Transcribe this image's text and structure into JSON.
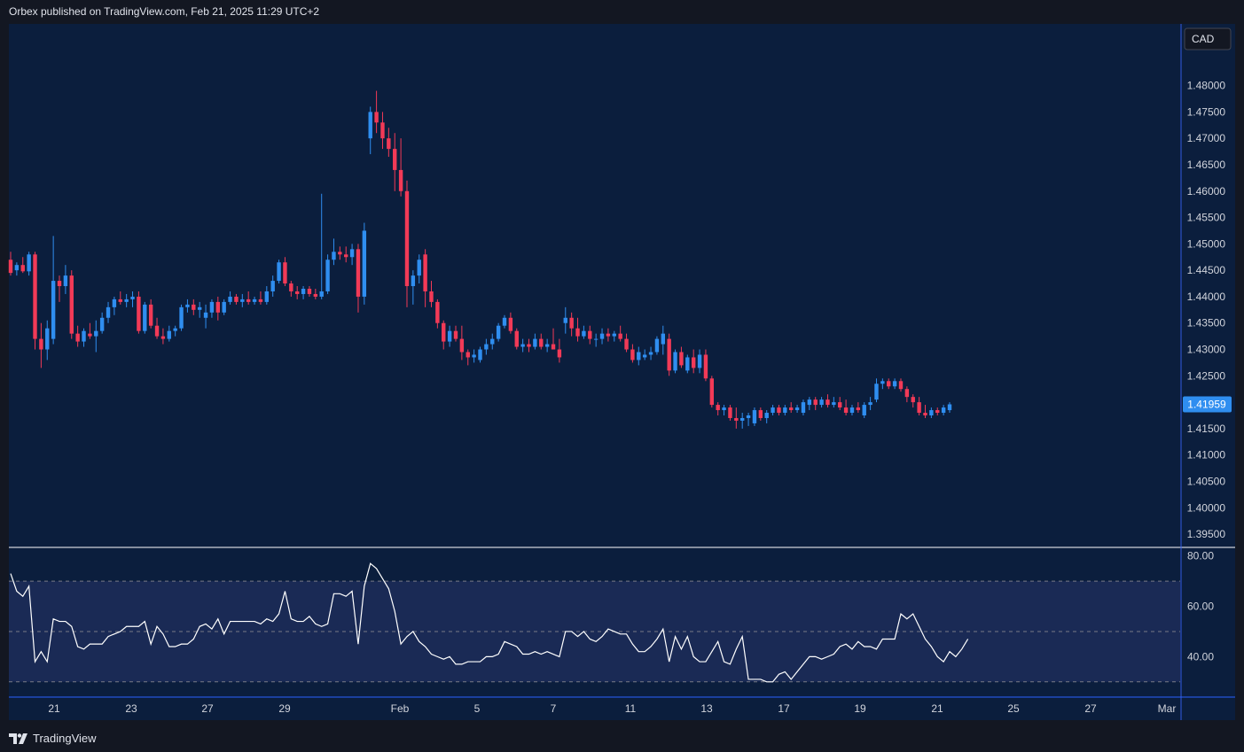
{
  "header": {
    "publisher": "Orbex published on TradingView.com, Feb 21, 2025 11:29 UTC+2"
  },
  "footer": {
    "brand": "TradingView"
  },
  "colors": {
    "background": "#0b1e3d",
    "outer": "#131722",
    "up": "#2f8ef0",
    "down": "#f23a57",
    "rsi_line": "#ffffff",
    "rsi_band": "#1a2a55",
    "axis_text": "#d1d4dc"
  },
  "chart_data": [
    {
      "type": "candlestick",
      "currency_label": "CAD",
      "last_price_label": "1.41959",
      "ylim": [
        1.3935,
        1.4895
      ],
      "y_ticks": [
        "1.48000",
        "1.47500",
        "1.47000",
        "1.46500",
        "1.46000",
        "1.45500",
        "1.45000",
        "1.44500",
        "1.44000",
        "1.43500",
        "1.43000",
        "1.42500",
        "1.42000",
        "1.41500",
        "1.41000",
        "1.40500",
        "1.40000",
        "1.39500"
      ],
      "x_ticks": [
        "21",
        "23",
        "27",
        "29",
        "Feb",
        "5",
        "7",
        "11",
        "13",
        "17",
        "19",
        "21",
        "25",
        "27",
        "Mar"
      ],
      "candles": [
        [
          1.447,
          1.4485,
          1.444,
          1.4445
        ],
        [
          1.445,
          1.4465,
          1.444,
          1.446
        ],
        [
          1.446,
          1.4475,
          1.4445,
          1.4448
        ],
        [
          1.4448,
          1.4485,
          1.444,
          1.448
        ],
        [
          1.448,
          1.4485,
          1.43,
          1.432
        ],
        [
          1.432,
          1.435,
          1.4265,
          1.43
        ],
        [
          1.43,
          1.4355,
          1.428,
          1.434
        ],
        [
          1.432,
          1.4515,
          1.431,
          1.443
        ],
        [
          1.443,
          1.444,
          1.439,
          1.442
        ],
        [
          1.442,
          1.446,
          1.4405,
          1.444
        ],
        [
          1.444,
          1.445,
          1.432,
          1.433
        ],
        [
          1.433,
          1.4345,
          1.4305,
          1.4315
        ],
        [
          1.4315,
          1.434,
          1.4305,
          1.4335
        ],
        [
          1.433,
          1.435,
          1.432,
          1.4325
        ],
        [
          1.4325,
          1.4355,
          1.4295,
          1.4335
        ],
        [
          1.4335,
          1.437,
          1.433,
          1.436
        ],
        [
          1.436,
          1.439,
          1.435,
          1.438
        ],
        [
          1.438,
          1.44,
          1.4365,
          1.4395
        ],
        [
          1.4395,
          1.441,
          1.4385,
          1.439
        ],
        [
          1.439,
          1.4405,
          1.438,
          1.4395
        ],
        [
          1.4395,
          1.441,
          1.438,
          1.44
        ],
        [
          1.44,
          1.441,
          1.433,
          1.4335
        ],
        [
          1.4335,
          1.439,
          1.433,
          1.4385
        ],
        [
          1.4385,
          1.4395,
          1.434,
          1.4345
        ],
        [
          1.4345,
          1.436,
          1.432,
          1.4325
        ],
        [
          1.4325,
          1.434,
          1.431,
          1.432
        ],
        [
          1.432,
          1.4345,
          1.4315,
          1.4335
        ],
        [
          1.4335,
          1.4345,
          1.4325,
          1.434
        ],
        [
          1.434,
          1.4385,
          1.4335,
          1.438
        ],
        [
          1.438,
          1.4395,
          1.437,
          1.4385
        ],
        [
          1.4385,
          1.4395,
          1.4365,
          1.4375
        ],
        [
          1.4375,
          1.439,
          1.436,
          1.438
        ],
        [
          1.436,
          1.4385,
          1.434,
          1.437
        ],
        [
          1.437,
          1.4395,
          1.436,
          1.439
        ],
        [
          1.439,
          1.44,
          1.4355,
          1.437
        ],
        [
          1.437,
          1.4395,
          1.4365,
          1.439
        ],
        [
          1.439,
          1.441,
          1.4385,
          1.44
        ],
        [
          1.44,
          1.4405,
          1.4385,
          1.439
        ],
        [
          1.439,
          1.4405,
          1.438,
          1.4395
        ],
        [
          1.4395,
          1.441,
          1.4385,
          1.439
        ],
        [
          1.439,
          1.44,
          1.4385,
          1.4395
        ],
        [
          1.4395,
          1.441,
          1.4385,
          1.439
        ],
        [
          1.439,
          1.442,
          1.4385,
          1.441
        ],
        [
          1.441,
          1.444,
          1.44,
          1.443
        ],
        [
          1.443,
          1.447,
          1.4425,
          1.4465
        ],
        [
          1.4465,
          1.4475,
          1.442,
          1.4425
        ],
        [
          1.4425,
          1.443,
          1.44,
          1.441
        ],
        [
          1.441,
          1.442,
          1.4395,
          1.4405
        ],
        [
          1.4405,
          1.442,
          1.4395,
          1.4415
        ],
        [
          1.4415,
          1.442,
          1.44,
          1.4405
        ],
        [
          1.4405,
          1.4415,
          1.4395,
          1.44
        ],
        [
          1.44,
          1.4595,
          1.4395,
          1.441
        ],
        [
          1.441,
          1.448,
          1.4405,
          1.447
        ],
        [
          1.447,
          1.451,
          1.446,
          1.4485
        ],
        [
          1.4485,
          1.4495,
          1.447,
          1.448
        ],
        [
          1.448,
          1.4495,
          1.4465,
          1.4475
        ],
        [
          1.4475,
          1.45,
          1.446,
          1.449
        ],
        [
          1.449,
          1.45,
          1.437,
          1.44
        ],
        [
          1.44,
          1.454,
          1.4385,
          1.4525
        ],
        [
          1.47,
          1.476,
          1.467,
          1.475
        ],
        [
          1.475,
          1.479,
          1.471,
          1.473
        ],
        [
          1.473,
          1.475,
          1.468,
          1.47
        ],
        [
          1.47,
          1.472,
          1.4665,
          1.468
        ],
        [
          1.468,
          1.471,
          1.46,
          1.464
        ],
        [
          1.464,
          1.47,
          1.459,
          1.46
        ],
        [
          1.46,
          1.462,
          1.438,
          1.442
        ],
        [
          1.442,
          1.445,
          1.4385,
          1.444
        ],
        [
          1.444,
          1.448,
          1.4425,
          1.447
        ],
        [
          1.448,
          1.449,
          1.438,
          1.441
        ],
        [
          1.441,
          1.443,
          1.438,
          1.439
        ],
        [
          1.439,
          1.4395,
          1.434,
          1.435
        ],
        [
          1.435,
          1.4355,
          1.43,
          1.4315
        ],
        [
          1.4315,
          1.4345,
          1.4305,
          1.4335
        ],
        [
          1.4335,
          1.4345,
          1.4315,
          1.432
        ],
        [
          1.432,
          1.4345,
          1.428,
          1.4295
        ],
        [
          1.4295,
          1.43,
          1.427,
          1.4285
        ],
        [
          1.4285,
          1.43,
          1.4275,
          1.429
        ],
        [
          1.428,
          1.4305,
          1.4275,
          1.43
        ],
        [
          1.43,
          1.432,
          1.429,
          1.431
        ],
        [
          1.431,
          1.433,
          1.43,
          1.432
        ],
        [
          1.432,
          1.435,
          1.4315,
          1.4345
        ],
        [
          1.4345,
          1.4365,
          1.434,
          1.436
        ],
        [
          1.436,
          1.437,
          1.433,
          1.4335
        ],
        [
          1.4335,
          1.434,
          1.43,
          1.4305
        ],
        [
          1.4305,
          1.432,
          1.4295,
          1.431
        ],
        [
          1.431,
          1.432,
          1.4295,
          1.4305
        ],
        [
          1.4305,
          1.433,
          1.43,
          1.432
        ],
        [
          1.432,
          1.433,
          1.43,
          1.4305
        ],
        [
          1.4305,
          1.432,
          1.4295,
          1.431
        ],
        [
          1.431,
          1.434,
          1.43,
          1.43
        ],
        [
          1.43,
          1.432,
          1.4275,
          1.4285
        ],
        [
          1.435,
          1.438,
          1.433,
          1.436
        ],
        [
          1.436,
          1.437,
          1.4325,
          1.434
        ],
        [
          1.434,
          1.436,
          1.4315,
          1.4325
        ],
        [
          1.4325,
          1.4345,
          1.432,
          1.4335
        ],
        [
          1.4335,
          1.4345,
          1.431,
          1.432
        ],
        [
          1.432,
          1.433,
          1.4305,
          1.432
        ],
        [
          1.432,
          1.434,
          1.431,
          1.433
        ],
        [
          1.433,
          1.434,
          1.4315,
          1.4325
        ],
        [
          1.4325,
          1.4335,
          1.4315,
          1.433
        ],
        [
          1.433,
          1.4345,
          1.4315,
          1.432
        ],
        [
          1.432,
          1.433,
          1.4295,
          1.43
        ],
        [
          1.43,
          1.431,
          1.4275,
          1.428
        ],
        [
          1.428,
          1.4305,
          1.427,
          1.4295
        ],
        [
          1.4285,
          1.43,
          1.428,
          1.429
        ],
        [
          1.429,
          1.4305,
          1.428,
          1.4295
        ],
        [
          1.4295,
          1.4325,
          1.429,
          1.432
        ],
        [
          1.431,
          1.4345,
          1.429,
          1.433
        ],
        [
          1.432,
          1.433,
          1.425,
          1.426
        ],
        [
          1.426,
          1.43,
          1.4255,
          1.4295
        ],
        [
          1.4295,
          1.4305,
          1.4265,
          1.427
        ],
        [
          1.426,
          1.429,
          1.4255,
          1.4285
        ],
        [
          1.4285,
          1.43,
          1.4255,
          1.4265
        ],
        [
          1.4265,
          1.43,
          1.4255,
          1.429
        ],
        [
          1.429,
          1.43,
          1.424,
          1.4245
        ],
        [
          1.4245,
          1.425,
          1.419,
          1.4195
        ],
        [
          1.4195,
          1.42,
          1.4175,
          1.4185
        ],
        [
          1.4185,
          1.4195,
          1.4175,
          1.419
        ],
        [
          1.419,
          1.4195,
          1.4165,
          1.417
        ],
        [
          1.417,
          1.419,
          1.415,
          1.4165
        ],
        [
          1.4165,
          1.418,
          1.415,
          1.417
        ],
        [
          1.417,
          1.418,
          1.4155,
          1.4175
        ],
        [
          1.416,
          1.419,
          1.4155,
          1.4185
        ],
        [
          1.4185,
          1.419,
          1.4165,
          1.417
        ],
        [
          1.417,
          1.4185,
          1.416,
          1.418
        ],
        [
          1.418,
          1.4195,
          1.4175,
          1.419
        ],
        [
          1.419,
          1.4195,
          1.4175,
          1.418
        ],
        [
          1.418,
          1.4195,
          1.4175,
          1.419
        ],
        [
          1.419,
          1.42,
          1.418,
          1.4185
        ],
        [
          1.4185,
          1.4195,
          1.418,
          1.419
        ],
        [
          1.418,
          1.4205,
          1.4175,
          1.42
        ],
        [
          1.4195,
          1.421,
          1.4185,
          1.4205
        ],
        [
          1.4205,
          1.421,
          1.4185,
          1.4195
        ],
        [
          1.4195,
          1.421,
          1.419,
          1.4205
        ],
        [
          1.4205,
          1.4215,
          1.419,
          1.4195
        ],
        [
          1.4195,
          1.421,
          1.419,
          1.42
        ],
        [
          1.42,
          1.421,
          1.4185,
          1.419
        ],
        [
          1.419,
          1.4205,
          1.4175,
          1.418
        ],
        [
          1.418,
          1.4195,
          1.4175,
          1.419
        ],
        [
          1.419,
          1.42,
          1.418,
          1.4185
        ],
        [
          1.4175,
          1.42,
          1.417,
          1.4195
        ],
        [
          1.4195,
          1.421,
          1.4185,
          1.42
        ],
        [
          1.4205,
          1.4245,
          1.42,
          1.4235
        ],
        [
          1.4235,
          1.4245,
          1.4225,
          1.424
        ],
        [
          1.424,
          1.4245,
          1.4225,
          1.423
        ],
        [
          1.423,
          1.4245,
          1.4225,
          1.424
        ],
        [
          1.424,
          1.4245,
          1.422,
          1.4225
        ],
        [
          1.4225,
          1.423,
          1.42,
          1.421
        ],
        [
          1.421,
          1.4215,
          1.419,
          1.42
        ],
        [
          1.42,
          1.421,
          1.4175,
          1.418
        ],
        [
          1.418,
          1.4195,
          1.417,
          1.4175
        ],
        [
          1.4175,
          1.419,
          1.417,
          1.4185
        ],
        [
          1.4185,
          1.419,
          1.4175,
          1.418
        ],
        [
          1.418,
          1.4195,
          1.4175,
          1.419
        ],
        [
          1.4185,
          1.42,
          1.418,
          1.4196
        ]
      ]
    },
    {
      "type": "line",
      "name": "RSI",
      "ylim": [
        25,
        82
      ],
      "y_ticks": [
        "80.00",
        "60.00",
        "40.00"
      ],
      "bands": [
        70,
        50,
        30
      ],
      "values": [
        73,
        66,
        64,
        68,
        38,
        42,
        38,
        55,
        54,
        54,
        52,
        44,
        43,
        45,
        45,
        45,
        48,
        49,
        50,
        52,
        52,
        52,
        54,
        45,
        52,
        49,
        44,
        44,
        45,
        45,
        47,
        52,
        53,
        51,
        55,
        49,
        54,
        54,
        54,
        54,
        54,
        53,
        55,
        54,
        57,
        66,
        55,
        54,
        54,
        56,
        53,
        52,
        53,
        65,
        65,
        64,
        66,
        45,
        68,
        77,
        75,
        71,
        67,
        58,
        45,
        48,
        50,
        46,
        44,
        41,
        40,
        39,
        40,
        37,
        37,
        38,
        38,
        38,
        40,
        40,
        41,
        46,
        45,
        44,
        41,
        41,
        42,
        41,
        42,
        41,
        40,
        50,
        50,
        48,
        50,
        47,
        46,
        48,
        51,
        50,
        49,
        49,
        45,
        42,
        42,
        44,
        47,
        51,
        38,
        48,
        43,
        48,
        40,
        38,
        38,
        42,
        46,
        38,
        37,
        43,
        48,
        31,
        31,
        31,
        30,
        30,
        33,
        34,
        31,
        34,
        37,
        40,
        40,
        39,
        40,
        41,
        44,
        45,
        43,
        46,
        44,
        44,
        43,
        47,
        47,
        47,
        57,
        55,
        57,
        52,
        47,
        44,
        40,
        38,
        42,
        40,
        43,
        47
      ]
    }
  ]
}
